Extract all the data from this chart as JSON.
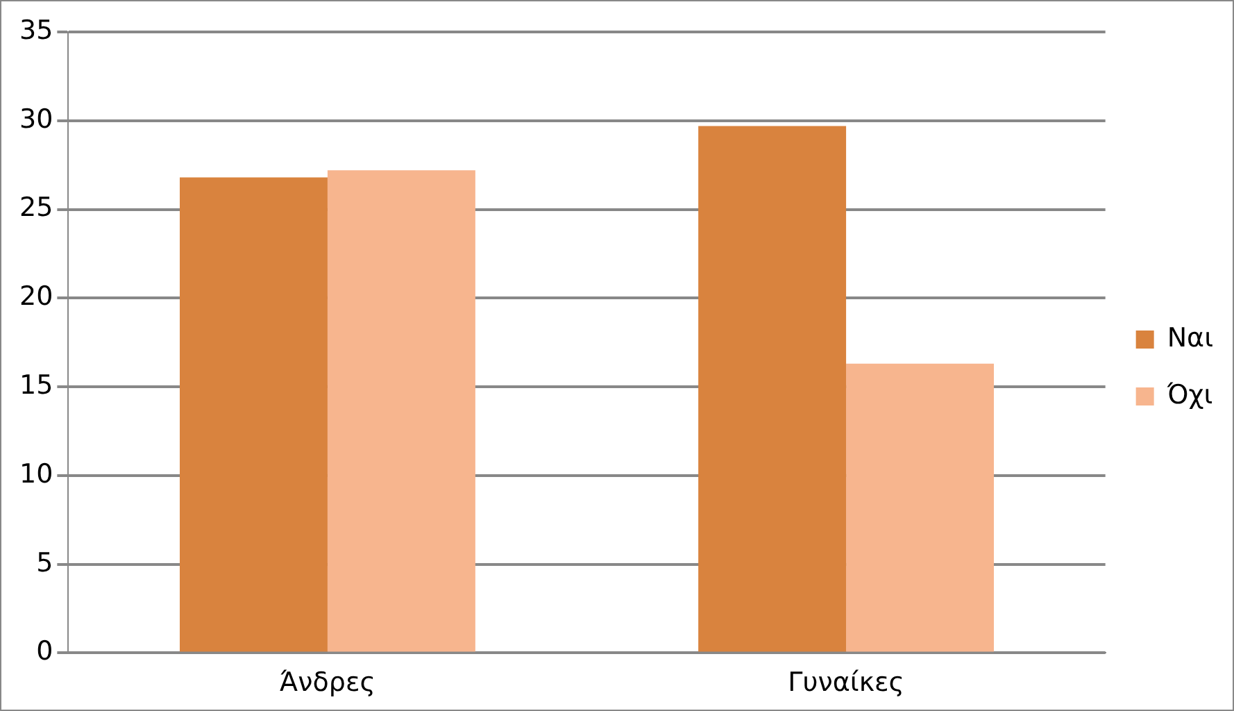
{
  "chart_data": {
    "type": "bar",
    "categories": [
      "Άνδρες",
      "Γυναίκες"
    ],
    "series": [
      {
        "name": "Ναι",
        "color": "#d9833e",
        "values": [
          26.8,
          29.7
        ]
      },
      {
        "name": "Όχι",
        "color": "#f7b58e",
        "values": [
          27.2,
          16.3
        ]
      }
    ],
    "ylim": [
      0,
      35
    ],
    "yticks": [
      0,
      5,
      10,
      15,
      20,
      25,
      30,
      35
    ],
    "grid": "y",
    "legend": "right"
  }
}
